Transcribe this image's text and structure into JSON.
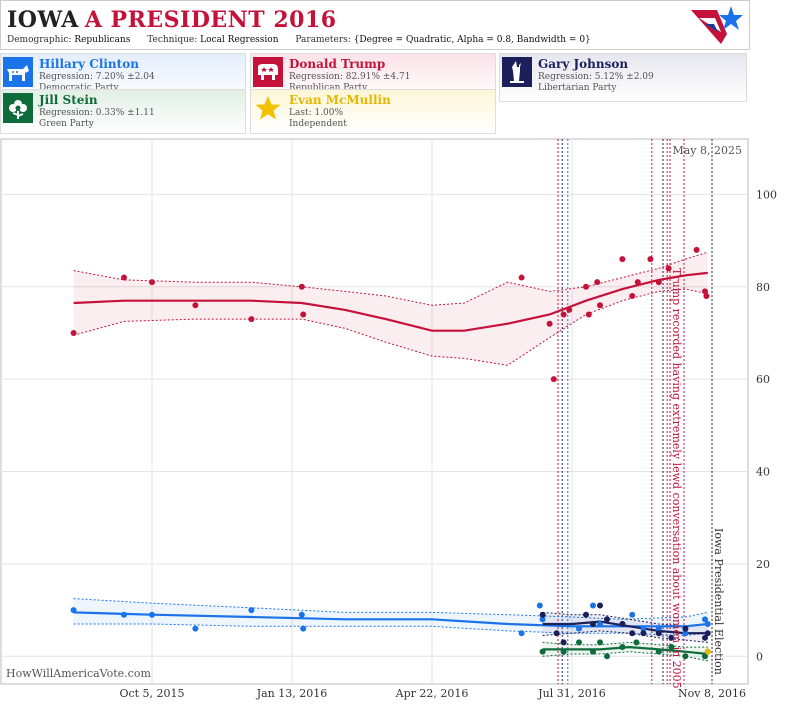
{
  "header": {
    "state": "IOWA",
    "race": "A PRESIDENT 2016",
    "demographic_label": "Demographic:",
    "demographic_value": "Republicans",
    "technique_label": "Technique:",
    "technique_value": "Local Regression",
    "parameters_label": "Parameters:",
    "parameters_value": "{Degree = Quadratic, Alpha = 0.8, Bandwidth = 0}"
  },
  "candidates": [
    {
      "name": "Hillary Clinton",
      "regression": "Regression: 7.20% ±2.04",
      "party": "Democratic Party",
      "color": "#1a73e8",
      "icon": "donkey-icon"
    },
    {
      "name": "Donald Trump",
      "regression": "Regression: 82.91% ±4.71",
      "party": "Republican Party",
      "color": "#c4123a",
      "icon": "elephant-icon"
    },
    {
      "name": "Gary Johnson",
      "regression": "Regression: 5.12% ±2.09",
      "party": "Libertarian Party",
      "color": "#1b1f5a",
      "icon": "statue-of-liberty-icon"
    },
    {
      "name": "Jill Stein",
      "regression": "Regression: 0.33% ±1.11",
      "party": "Green Party",
      "color": "#0e6b3a",
      "icon": "flower-icon"
    },
    {
      "name": "Evan McMullin",
      "regression": "Last: 1.00%",
      "party": "Independent",
      "color": "#e6b800",
      "icon": "star-icon"
    }
  ],
  "watermark": "HowWillAmericaVote.com",
  "chart_data": {
    "type": "line",
    "x_ticks": [
      "Oct 5, 2015",
      "Jan 13, 2016",
      "Apr 22, 2016",
      "Jul 31, 2016",
      "Nov 8, 2016"
    ],
    "y_ticks": [
      0,
      20,
      40,
      60,
      80,
      100
    ],
    "ylim": [
      -6,
      112
    ],
    "grid": true,
    "annotations": [
      {
        "text": "May 8, 2025"
      },
      {
        "text": "Trump recorded having extremely lewd conversation about women in 2005",
        "color": "#c4123a"
      },
      {
        "text": "Iowa Presidential Election",
        "color": "#333333"
      }
    ],
    "series": [
      {
        "name": "Donald Trump",
        "color": "#c4123a",
        "points": [
          [
            "2015-08-10",
            70
          ],
          [
            "2015-09-15",
            82
          ],
          [
            "2015-10-05",
            81
          ],
          [
            "2015-11-05",
            76
          ],
          [
            "2015-12-15",
            73
          ],
          [
            "2016-01-20",
            80
          ],
          [
            "2016-01-21",
            74
          ],
          [
            "2016-06-25",
            82
          ],
          [
            "2016-07-15",
            72
          ],
          [
            "2016-07-18",
            60
          ],
          [
            "2016-07-25",
            74
          ],
          [
            "2016-07-29",
            75
          ],
          [
            "2016-08-10",
            80
          ],
          [
            "2016-08-12",
            74
          ],
          [
            "2016-08-18",
            81
          ],
          [
            "2016-08-20",
            76
          ],
          [
            "2016-09-05",
            86
          ],
          [
            "2016-09-12",
            78
          ],
          [
            "2016-09-16",
            81
          ],
          [
            "2016-09-25",
            86
          ],
          [
            "2016-10-01",
            81
          ],
          [
            "2016-10-08",
            84
          ],
          [
            "2016-10-28",
            88
          ],
          [
            "2016-11-03",
            79
          ],
          [
            "2016-11-04",
            78
          ]
        ],
        "trend": [
          [
            "2015-08-10",
            76.5
          ],
          [
            "2015-09-15",
            77
          ],
          [
            "2015-11-05",
            77
          ],
          [
            "2015-12-15",
            77
          ],
          [
            "2016-01-20",
            76.5
          ],
          [
            "2016-02-20",
            75
          ],
          [
            "2016-03-20",
            73
          ],
          [
            "2016-04-22",
            70.5
          ],
          [
            "2016-05-15",
            70.5
          ],
          [
            "2016-06-15",
            72
          ],
          [
            "2016-07-15",
            74
          ],
          [
            "2016-08-10",
            77
          ],
          [
            "2016-09-05",
            79.5
          ],
          [
            "2016-10-01",
            81.5
          ],
          [
            "2016-10-20",
            82.5
          ],
          [
            "2016-11-05",
            83
          ]
        ],
        "band_hi": [
          [
            "2015-08-10",
            83.5
          ],
          [
            "2015-09-15",
            81.5
          ],
          [
            "2015-11-05",
            81
          ],
          [
            "2015-12-15",
            81
          ],
          [
            "2016-01-20",
            80
          ],
          [
            "2016-02-20",
            79
          ],
          [
            "2016-03-20",
            78
          ],
          [
            "2016-04-22",
            76
          ],
          [
            "2016-05-15",
            76.5
          ],
          [
            "2016-06-15",
            81
          ],
          [
            "2016-07-15",
            79
          ],
          [
            "2016-08-10",
            80
          ],
          [
            "2016-09-05",
            82
          ],
          [
            "2016-10-01",
            84
          ],
          [
            "2016-10-20",
            86
          ],
          [
            "2016-11-05",
            87.5
          ]
        ],
        "band_lo": [
          [
            "2015-08-10",
            69.5
          ],
          [
            "2015-09-15",
            72.5
          ],
          [
            "2015-11-05",
            73
          ],
          [
            "2015-12-15",
            73
          ],
          [
            "2016-01-20",
            73
          ],
          [
            "2016-02-20",
            71
          ],
          [
            "2016-03-20",
            68
          ],
          [
            "2016-04-22",
            65
          ],
          [
            "2016-05-15",
            64.5
          ],
          [
            "2016-06-15",
            63
          ],
          [
            "2016-07-15",
            69
          ],
          [
            "2016-08-10",
            74
          ],
          [
            "2016-09-05",
            77
          ],
          [
            "2016-10-01",
            79
          ],
          [
            "2016-10-20",
            79.5
          ],
          [
            "2016-11-05",
            78.5
          ]
        ]
      },
      {
        "name": "Hillary Clinton",
        "color": "#1a73e8",
        "points": [
          [
            "2015-08-10",
            10
          ],
          [
            "2015-09-15",
            9
          ],
          [
            "2015-10-05",
            9
          ],
          [
            "2015-11-05",
            6
          ],
          [
            "2015-12-15",
            10
          ],
          [
            "2016-01-20",
            9
          ],
          [
            "2016-01-21",
            6
          ],
          [
            "2016-06-25",
            5
          ],
          [
            "2016-07-08",
            11
          ],
          [
            "2016-07-10",
            8
          ],
          [
            "2016-08-05",
            6
          ],
          [
            "2016-08-15",
            11
          ],
          [
            "2016-08-20",
            7
          ],
          [
            "2016-09-05",
            7
          ],
          [
            "2016-09-12",
            9
          ],
          [
            "2016-09-20",
            6
          ],
          [
            "2016-10-01",
            6
          ],
          [
            "2016-10-20",
            5
          ],
          [
            "2016-11-03",
            8
          ],
          [
            "2016-11-05",
            7
          ]
        ],
        "trend": [
          [
            "2015-08-10",
            9.5
          ],
          [
            "2015-10-05",
            9
          ],
          [
            "2015-12-15",
            8.5
          ],
          [
            "2016-02-20",
            8
          ],
          [
            "2016-04-22",
            8
          ],
          [
            "2016-06-15",
            7
          ],
          [
            "2016-07-31",
            6.5
          ],
          [
            "2016-09-05",
            6.5
          ],
          [
            "2016-10-20",
            6.5
          ],
          [
            "2016-11-05",
            7
          ]
        ],
        "band_hi": [
          [
            "2015-08-10",
            12.5
          ],
          [
            "2015-10-05",
            11.5
          ],
          [
            "2015-12-15",
            10.5
          ],
          [
            "2016-02-20",
            9.5
          ],
          [
            "2016-04-22",
            9.5
          ],
          [
            "2016-06-15",
            9
          ],
          [
            "2016-07-31",
            8.5
          ],
          [
            "2016-09-05",
            8
          ],
          [
            "2016-10-20",
            8.5
          ],
          [
            "2016-11-05",
            9.5
          ]
        ],
        "band_lo": [
          [
            "2015-08-10",
            7
          ],
          [
            "2015-10-05",
            7
          ],
          [
            "2015-12-15",
            6.5
          ],
          [
            "2016-02-20",
            6.5
          ],
          [
            "2016-04-22",
            6.5
          ],
          [
            "2016-06-15",
            5.5
          ],
          [
            "2016-07-31",
            5
          ],
          [
            "2016-09-05",
            5
          ],
          [
            "2016-10-20",
            4.5
          ],
          [
            "2016-11-05",
            5
          ]
        ]
      },
      {
        "name": "Gary Johnson",
        "color": "#1b1f5a",
        "points": [
          [
            "2016-07-10",
            9
          ],
          [
            "2016-07-20",
            5
          ],
          [
            "2016-07-25",
            3
          ],
          [
            "2016-08-10",
            9
          ],
          [
            "2016-08-15",
            7
          ],
          [
            "2016-08-20",
            11
          ],
          [
            "2016-08-25",
            8
          ],
          [
            "2016-09-05",
            7
          ],
          [
            "2016-09-12",
            5
          ],
          [
            "2016-09-20",
            5
          ],
          [
            "2016-10-01",
            5
          ],
          [
            "2016-10-10",
            4
          ],
          [
            "2016-10-20",
            6
          ],
          [
            "2016-11-03",
            4
          ],
          [
            "2016-11-05",
            5
          ]
        ],
        "trend": [
          [
            "2016-07-10",
            7
          ],
          [
            "2016-07-31",
            7
          ],
          [
            "2016-08-20",
            7.5
          ],
          [
            "2016-09-10",
            6.5
          ],
          [
            "2016-10-01",
            5.5
          ],
          [
            "2016-10-20",
            5
          ],
          [
            "2016-11-05",
            5
          ]
        ],
        "band_hi": [
          [
            "2016-07-10",
            9.5
          ],
          [
            "2016-07-31",
            9
          ],
          [
            "2016-08-20",
            9
          ],
          [
            "2016-09-10",
            8
          ],
          [
            "2016-10-01",
            7
          ],
          [
            "2016-10-20",
            6.5
          ],
          [
            "2016-11-05",
            7
          ]
        ],
        "band_lo": [
          [
            "2016-07-10",
            4.5
          ],
          [
            "2016-07-31",
            5
          ],
          [
            "2016-08-20",
            5.5
          ],
          [
            "2016-09-10",
            5
          ],
          [
            "2016-10-01",
            4
          ],
          [
            "2016-10-20",
            3.5
          ],
          [
            "2016-11-05",
            3
          ]
        ]
      },
      {
        "name": "Jill Stein",
        "color": "#0e6b3a",
        "points": [
          [
            "2016-07-10",
            1
          ],
          [
            "2016-07-25",
            1
          ],
          [
            "2016-08-05",
            3
          ],
          [
            "2016-08-15",
            1
          ],
          [
            "2016-08-20",
            3
          ],
          [
            "2016-08-25",
            0
          ],
          [
            "2016-09-05",
            2
          ],
          [
            "2016-09-15",
            3
          ],
          [
            "2016-10-01",
            1
          ],
          [
            "2016-10-10",
            2
          ],
          [
            "2016-10-20",
            0
          ],
          [
            "2016-11-03",
            0
          ],
          [
            "2016-11-05",
            1
          ]
        ],
        "trend": [
          [
            "2016-07-10",
            1.5
          ],
          [
            "2016-07-31",
            1.5
          ],
          [
            "2016-08-20",
            1.5
          ],
          [
            "2016-09-10",
            2
          ],
          [
            "2016-10-01",
            1.5
          ],
          [
            "2016-10-20",
            1
          ],
          [
            "2016-11-05",
            0.5
          ]
        ],
        "band_hi": [
          [
            "2016-07-10",
            3
          ],
          [
            "2016-07-31",
            2.5
          ],
          [
            "2016-08-20",
            2.5
          ],
          [
            "2016-09-10",
            3
          ],
          [
            "2016-10-01",
            2.5
          ],
          [
            "2016-10-20",
            2
          ],
          [
            "2016-11-05",
            2
          ]
        ],
        "band_lo": [
          [
            "2016-07-10",
            0
          ],
          [
            "2016-07-31",
            0.5
          ],
          [
            "2016-08-20",
            0.5
          ],
          [
            "2016-09-10",
            1
          ],
          [
            "2016-10-01",
            0.5
          ],
          [
            "2016-10-20",
            0
          ],
          [
            "2016-11-05",
            -1
          ]
        ]
      },
      {
        "name": "Evan McMullin",
        "color": "#e6b800",
        "points": [
          [
            "2016-11-05",
            1
          ]
        ]
      }
    ],
    "event_lines": [
      {
        "date": "2016-07-21",
        "color": "#c4123a"
      },
      {
        "date": "2016-07-24",
        "color": "#1b1f5a"
      },
      {
        "date": "2016-07-28",
        "color": "#1a73e8"
      },
      {
        "date": "2016-09-26",
        "color": "#c4123a"
      },
      {
        "date": "2016-10-04",
        "color": "#1b1f5a"
      },
      {
        "date": "2016-10-07",
        "color": "#c4123a"
      },
      {
        "date": "2016-10-09",
        "color": "#c4123a"
      },
      {
        "date": "2016-10-19",
        "color": "#c4123a"
      },
      {
        "date": "2016-11-08",
        "color": "#333333"
      }
    ]
  }
}
